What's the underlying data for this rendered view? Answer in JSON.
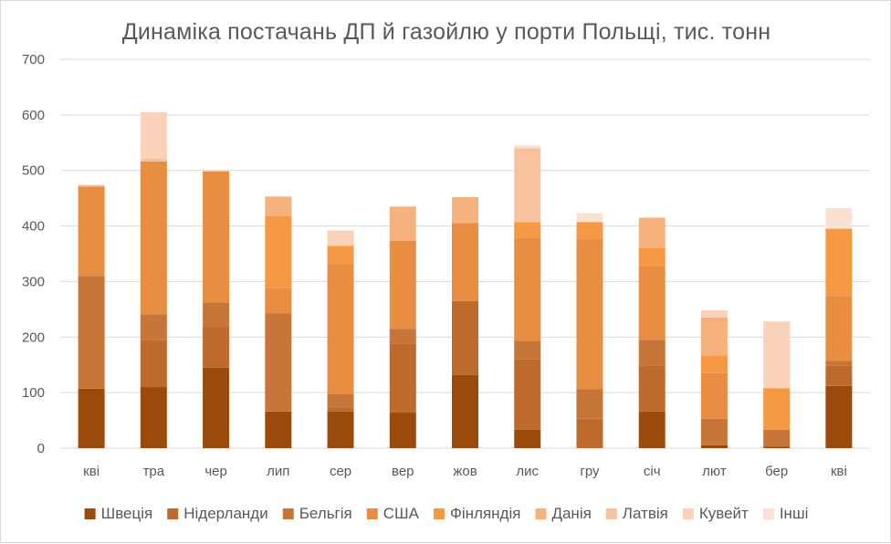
{
  "chart_data": {
    "type": "bar",
    "stacked": true,
    "title": "Динаміка постачань ДП й газойлю у порти Польщі, тис. тонн",
    "categories": [
      "кві",
      "тра",
      "чер",
      "лип",
      "сер",
      "вер",
      "жов",
      "лис",
      "гру",
      "січ",
      "лют",
      "бер",
      "кві"
    ],
    "ylim": [
      0,
      700
    ],
    "yticks": [
      0,
      100,
      200,
      300,
      400,
      500,
      600,
      700
    ],
    "grid": true,
    "legend": "bottom",
    "series": [
      {
        "name": "Швеція",
        "color": "#9c4a0b",
        "values": [
          107,
          110,
          145,
          66,
          66,
          64,
          132,
          33,
          0,
          66,
          5,
          3,
          112
        ]
      },
      {
        "name": "Нідерланди",
        "color": "#bd6a2c",
        "values": [
          0,
          84,
          75,
          0,
          7,
          124,
          133,
          127,
          53,
          82,
          0,
          0,
          37
        ]
      },
      {
        "name": "Бельгія",
        "color": "#c8753a",
        "values": [
          203,
          47,
          42,
          177,
          25,
          27,
          0,
          33,
          53,
          47,
          48,
          30,
          8
        ]
      },
      {
        "name": "США",
        "color": "#e78e42",
        "values": [
          161,
          275,
          236,
          45,
          233,
          158,
          140,
          185,
          271,
          133,
          82,
          0,
          117
        ]
      },
      {
        "name": "Фінляндія",
        "color": "#f59945",
        "values": [
          0,
          0,
          0,
          130,
          33,
          0,
          0,
          29,
          30,
          32,
          32,
          75,
          121
        ]
      },
      {
        "name": "Данія",
        "color": "#f6b27d",
        "values": [
          0,
          0,
          0,
          35,
          0,
          62,
          47,
          0,
          0,
          55,
          68,
          0,
          0
        ]
      },
      {
        "name": "Латвія",
        "color": "#f7c39d",
        "values": [
          3,
          5,
          2,
          0,
          0,
          0,
          0,
          133,
          0,
          0,
          0,
          0,
          0
        ]
      },
      {
        "name": "Кувейт",
        "color": "#f9d2b9",
        "values": [
          0,
          84,
          0,
          0,
          28,
          0,
          0,
          0,
          0,
          0,
          13,
          120,
          0
        ]
      },
      {
        "name": "Інші",
        "color": "#fbe1d3",
        "values": [
          0,
          0,
          0,
          0,
          0,
          0,
          0,
          5,
          16,
          0,
          0,
          0,
          37
        ]
      }
    ]
  }
}
